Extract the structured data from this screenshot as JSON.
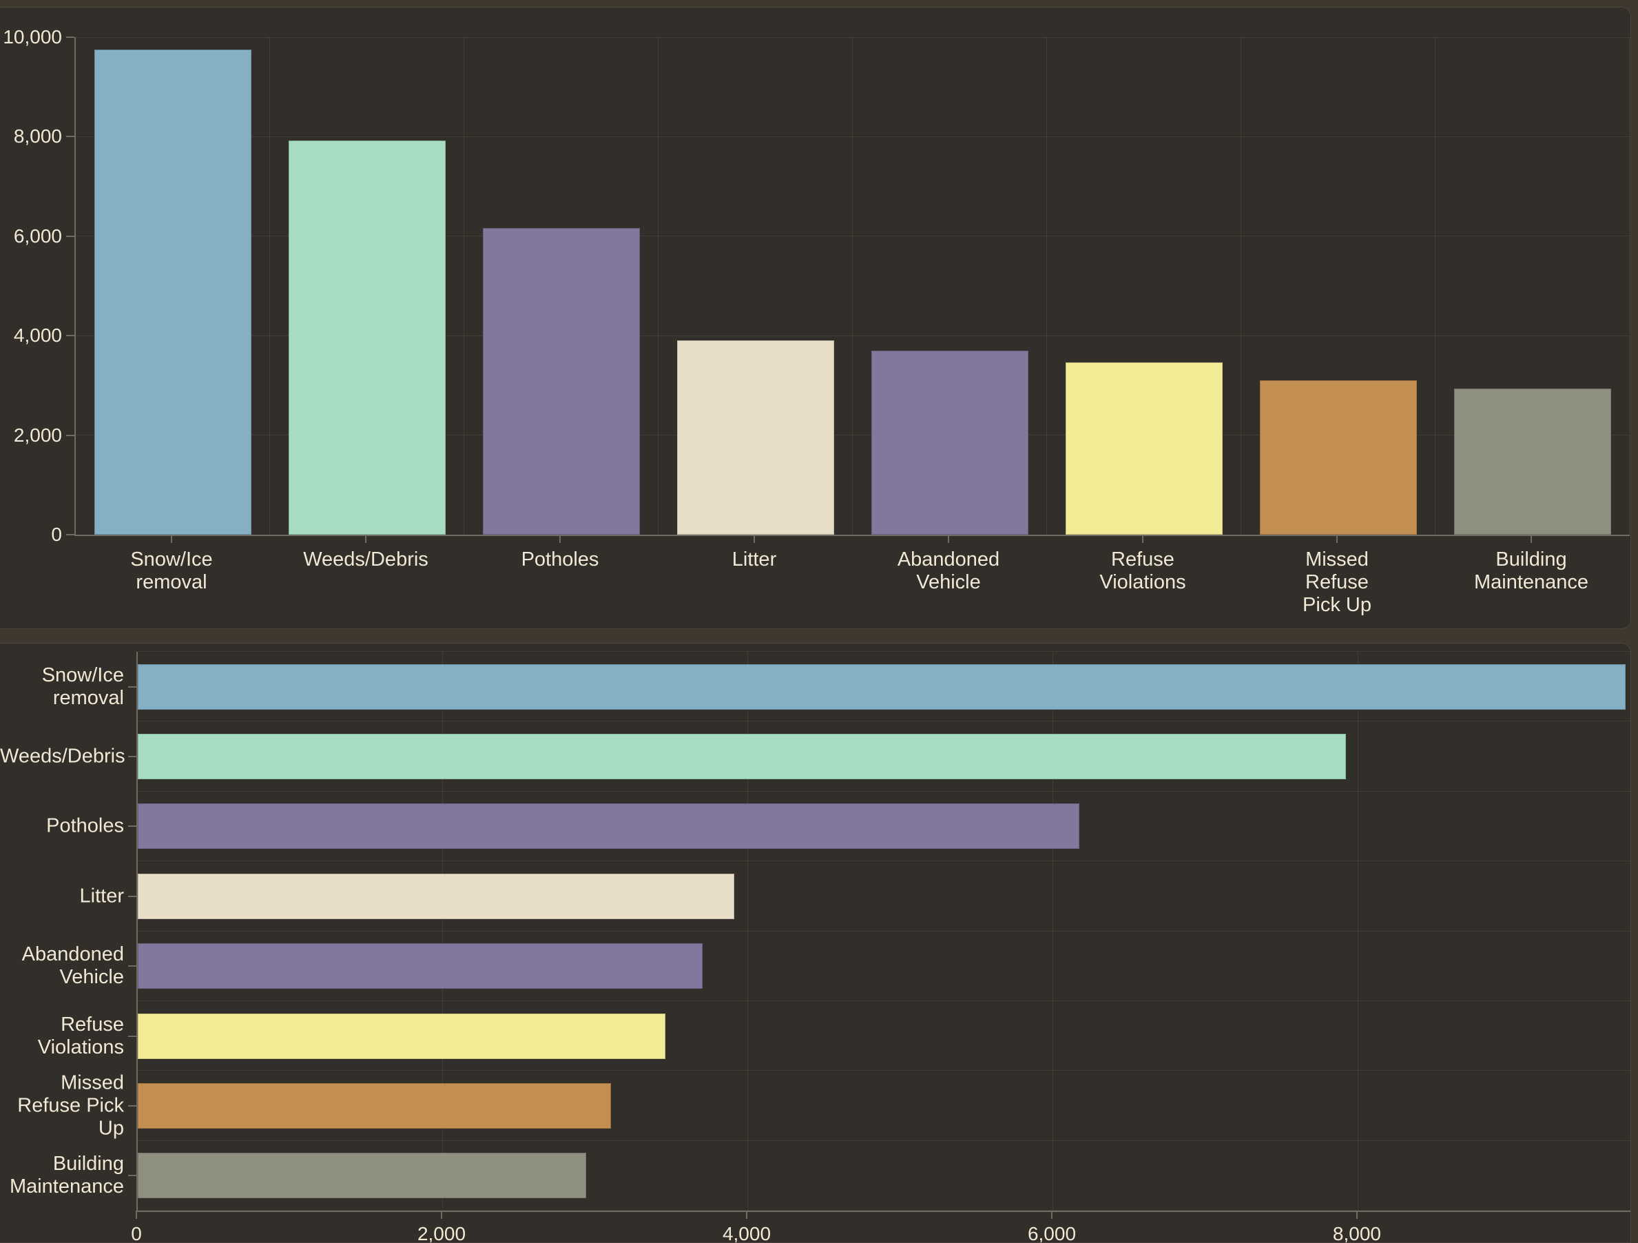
{
  "palette": {
    "frame_background": "#3E382F",
    "panel_background": "#322E29",
    "panel_border": "#4A443A",
    "axis_color": "#716C63",
    "gridline_color": "rgba(238,230,214,0.08)",
    "text_color": "#F1E8D5"
  },
  "categories": [
    {
      "label": "Snow/Ice removal",
      "value": 9750,
      "color": "#85AFC4",
      "top_lines": [
        "Snow/Ice",
        "removal"
      ],
      "side_lines": [
        "Snow/Ice",
        "removal"
      ]
    },
    {
      "label": "Weeds/Debris",
      "value": 7920,
      "color": "#A6DCC0",
      "top_lines": [
        "Weeds/Debris"
      ],
      "side_lines": [
        "Weeds/Debris"
      ]
    },
    {
      "label": "Potholes",
      "value": 6170,
      "color": "#84779E",
      "top_lines": [
        "Potholes"
      ],
      "side_lines": [
        "Potholes"
      ]
    },
    {
      "label": "Litter",
      "value": 3910,
      "color": "#E8DEC8",
      "top_lines": [
        "Litter"
      ],
      "side_lines": [
        "Litter"
      ]
    },
    {
      "label": "Abandoned Vehicle",
      "value": 3700,
      "color": "#84779E",
      "top_lines": [
        "Abandoned",
        "Vehicle"
      ],
      "side_lines": [
        "Abandoned",
        "Vehicle"
      ]
    },
    {
      "label": "Refuse Violations",
      "value": 3460,
      "color": "#F3EC96",
      "top_lines": [
        "Refuse",
        "Violations"
      ],
      "side_lines": [
        "Refuse",
        "Violations"
      ]
    },
    {
      "label": "Missed Refuse Pick Up",
      "value": 3100,
      "color": "#C28F51",
      "top_lines": [
        "Missed",
        "Refuse",
        "Pick Up"
      ],
      "side_lines": [
        "Missed",
        "Refuse Pick",
        "Up"
      ]
    },
    {
      "label": "Building Maintenance",
      "value": 2940,
      "color": "#8F9080",
      "top_lines": [
        "Building",
        "Maintenance"
      ],
      "side_lines": [
        "Building",
        "Maintenance"
      ]
    }
  ],
  "chart_data": [
    {
      "type": "bar",
      "orientation": "vertical",
      "title": "",
      "categories": [
        "Snow/Ice removal",
        "Weeds/Debris",
        "Potholes",
        "Litter",
        "Abandoned Vehicle",
        "Refuse Violations",
        "Missed Refuse Pick Up",
        "Building Maintenance"
      ],
      "values": [
        9750,
        7920,
        6170,
        3910,
        3700,
        3460,
        3100,
        2940
      ],
      "bar_colors": [
        "#85AFC4",
        "#A6DCC0",
        "#84779E",
        "#E8DEC8",
        "#84779E",
        "#F3EC96",
        "#C28F51",
        "#8F9080"
      ],
      "xlabel": "",
      "ylabel": "",
      "ylim": [
        0,
        10000
      ],
      "ytick_values": [
        0,
        2000,
        4000,
        6000,
        8000,
        10000
      ],
      "ytick_labels": [
        "0",
        "2,000",
        "4,000",
        "6,000",
        "8,000",
        "10,000"
      ],
      "grid": true,
      "legend": false
    },
    {
      "type": "bar",
      "orientation": "horizontal",
      "title": "",
      "categories": [
        "Snow/Ice removal",
        "Weeds/Debris",
        "Potholes",
        "Litter",
        "Abandoned Vehicle",
        "Refuse Violations",
        "Missed Refuse Pick Up",
        "Building Maintenance"
      ],
      "values": [
        9750,
        7920,
        6170,
        3910,
        3700,
        3460,
        3100,
        2940
      ],
      "bar_colors": [
        "#85AFC4",
        "#A6DCC0",
        "#84779E",
        "#E8DEC8",
        "#84779E",
        "#F3EC96",
        "#C28F51",
        "#8F9080"
      ],
      "xlabel": "",
      "ylabel": "",
      "xlim": [
        0,
        9815
      ],
      "xtick_values": [
        0,
        2000,
        4000,
        6000,
        8000
      ],
      "xtick_labels": [
        "0",
        "2,000",
        "4,000",
        "6,000",
        "8,000"
      ],
      "grid": true,
      "legend": false
    }
  ]
}
